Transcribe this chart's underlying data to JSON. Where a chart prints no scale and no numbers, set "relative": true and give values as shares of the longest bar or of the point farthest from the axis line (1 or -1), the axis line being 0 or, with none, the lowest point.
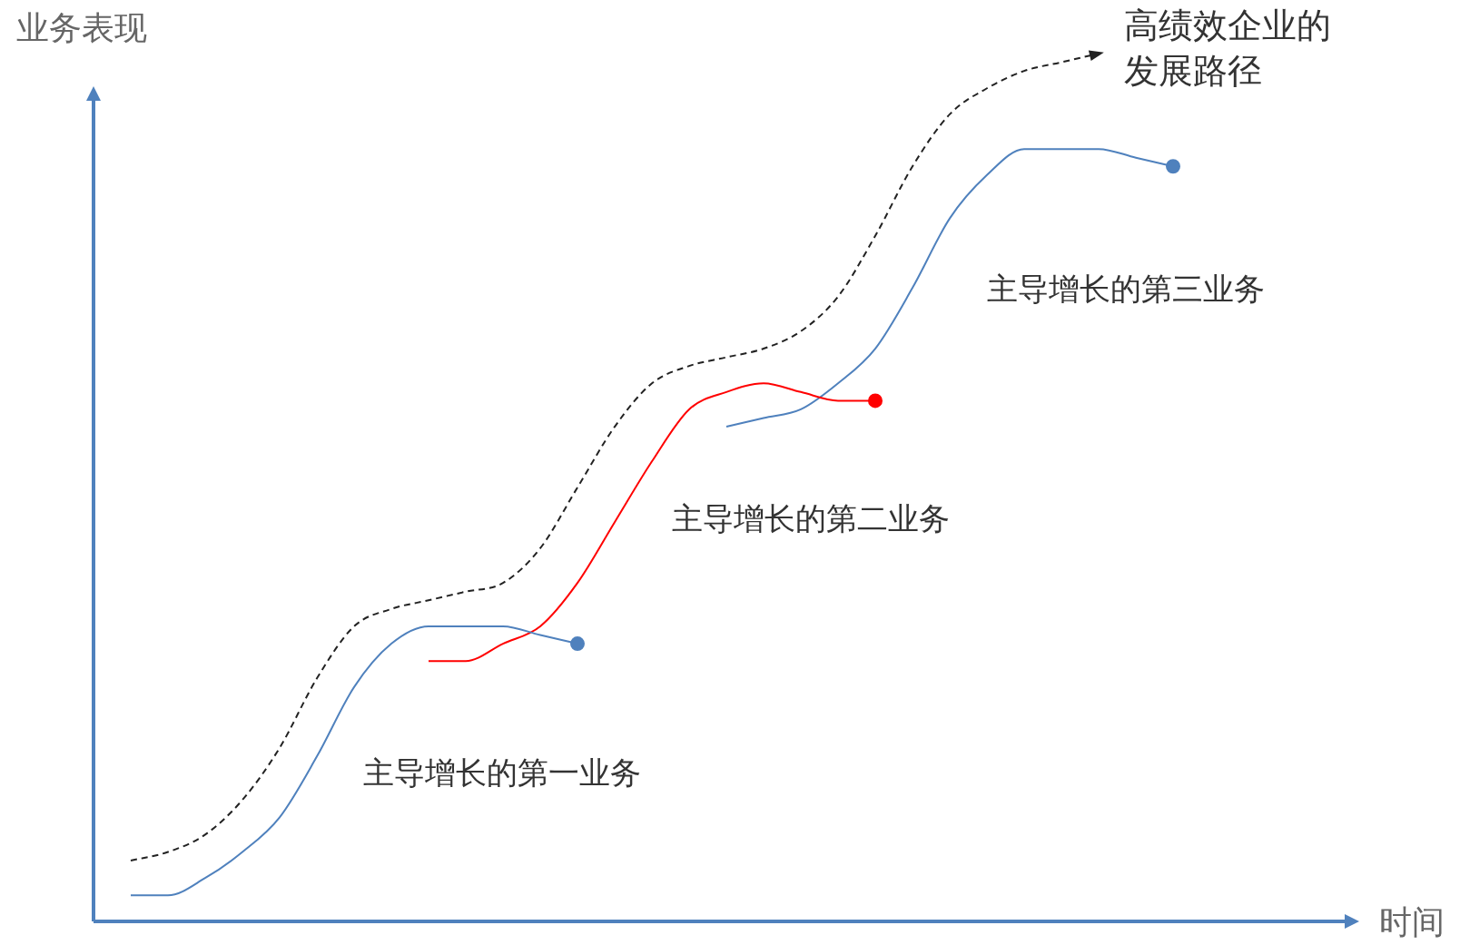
{
  "chart_data": {
    "type": "line",
    "relative": true,
    "xlabel": "时间",
    "ylabel": "业务表现",
    "legend": false,
    "categories": [
      null,
      null,
      null,
      null,
      null,
      null,
      null,
      null,
      null,
      null,
      null,
      null,
      null,
      null,
      null,
      null,
      null,
      null,
      null,
      null,
      null,
      null,
      null,
      null,
      null,
      null,
      null,
      null,
      null,
      null,
      null,
      null,
      null,
      null,
      null
    ],
    "annotations": [
      "高绩效企业的发展路径",
      "主导增长的第一业务",
      "主导增长的第二业务",
      "主导增长的第三业务"
    ],
    "series": [
      {
        "color": "#222222",
        "line_style": "dashed",
        "values": [
          null,
          0.07,
          0.08,
          0.1,
          0.14,
          0.2,
          0.28,
          0.34,
          0.36,
          0.37,
          0.38,
          0.39,
          0.43,
          0.5,
          0.57,
          0.62,
          0.64,
          0.65,
          0.66,
          0.68,
          0.72,
          0.79,
          0.87,
          0.93,
          0.96,
          0.98,
          0.99,
          1,
          null,
          null,
          null,
          null,
          null,
          null,
          null
        ]
      },
      {
        "color": "#4f81bd",
        "line_style": "solid",
        "values": [
          null,
          0.03,
          0.03,
          0.05,
          0.08,
          0.12,
          0.19,
          0.27,
          0.32,
          0.34,
          0.34,
          0.34,
          0.33,
          0.32,
          null,
          null,
          null,
          null,
          null,
          null,
          null,
          null,
          null,
          null,
          null,
          null,
          null,
          null,
          null,
          null,
          null,
          null,
          null,
          null,
          null
        ]
      },
      {
        "color": "#ff0000",
        "line_style": "solid",
        "values": [
          null,
          null,
          null,
          null,
          null,
          null,
          null,
          null,
          null,
          0.3,
          0.3,
          0.32,
          0.34,
          0.39,
          0.46,
          0.53,
          0.59,
          0.61,
          0.62,
          0.61,
          0.6,
          0.6,
          null,
          null,
          null,
          null,
          null,
          null,
          null,
          null,
          null,
          null,
          null,
          null,
          null
        ]
      },
      {
        "color": "#4f81bd",
        "line_style": "solid",
        "values": [
          null,
          null,
          null,
          null,
          null,
          null,
          null,
          null,
          null,
          null,
          null,
          null,
          null,
          null,
          null,
          null,
          null,
          0.57,
          0.58,
          0.59,
          0.62,
          0.66,
          0.73,
          0.81,
          0.86,
          0.89,
          0.89,
          0.89,
          0.88,
          0.87,
          null,
          null,
          null,
          null,
          null
        ]
      }
    ]
  }
}
